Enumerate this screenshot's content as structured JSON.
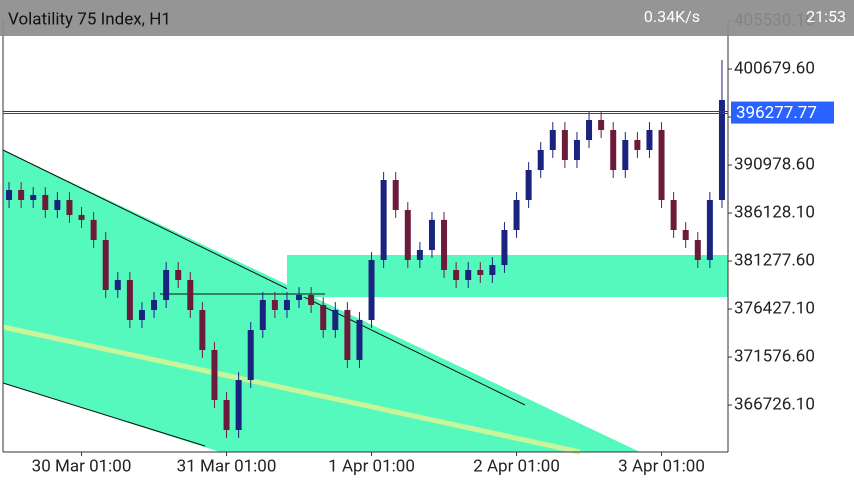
{
  "status_bar": {
    "speed": "0.34K/s",
    "time": "21:53"
  },
  "chart_data": {
    "type": "candlestick",
    "title": "Volatility 75 Index, H1",
    "categories": [
      null,
      null,
      null,
      null,
      null,
      null,
      "30 Mar 01:00",
      null,
      null,
      null,
      null,
      null,
      null,
      null,
      null,
      null,
      null,
      null,
      "31 Mar 01:00",
      null,
      null,
      null,
      null,
      null,
      null,
      null,
      null,
      null,
      null,
      null,
      "1 Apr 01:00",
      null,
      null,
      null,
      null,
      null,
      null,
      null,
      null,
      null,
      null,
      null,
      "2 Apr 01:00",
      null,
      null,
      null,
      null,
      null,
      null,
      null,
      null,
      null,
      null,
      null,
      "3 Apr 01:00",
      null,
      null,
      null,
      null,
      null
    ],
    "open": [
      387442,
      388452,
      387442,
      387947,
      386432,
      387442,
      385926,
      385431,
      383400,
      378347,
      379358,
      375316,
      376326,
      377337,
      380368,
      379358,
      376326,
      372285,
      367232,
      364200,
      369253,
      374305,
      377337,
      376326,
      377337,
      377842,
      376832,
      374305,
      376326,
      371274,
      375316,
      381379,
      389463,
      386432,
      381379,
      382390,
      385431,
      380368,
      379358,
      380368,
      379863,
      380873,
      384411,
      387442,
      390474,
      392495,
      394516,
      391484,
      393505,
      395526,
      394516,
      390474,
      393505,
      392495,
      394516,
      387442,
      384411,
      383400,
      381379,
      387442
    ],
    "high": [
      389252,
      389252,
      388747,
      388747,
      388242,
      388242,
      386726,
      386231,
      384200,
      380158,
      380158,
      377126,
      378137,
      381168,
      381168,
      380158,
      377126,
      373085,
      368032,
      370053,
      375105,
      378137,
      378137,
      378137,
      378642,
      378642,
      377632,
      377126,
      377126,
      376116,
      382179,
      390263,
      390263,
      387232,
      383190,
      386231,
      386231,
      381168,
      381168,
      381168,
      381673,
      385211,
      388242,
      391274,
      393295,
      395316,
      395316,
      394305,
      396326,
      396326,
      395316,
      394305,
      394305,
      395316,
      395316,
      388242,
      385211,
      384200,
      388242,
      401589
    ],
    "low": [
      386642,
      386642,
      386642,
      385632,
      385632,
      385126,
      384631,
      382600,
      377547,
      377547,
      374516,
      374516,
      375526,
      376537,
      378558,
      375526,
      371485,
      366432,
      363400,
      363400,
      368453,
      373505,
      375526,
      375526,
      376537,
      376032,
      373505,
      373505,
      370474,
      370474,
      374516,
      380579,
      385632,
      380579,
      380579,
      381590,
      379568,
      378558,
      378558,
      379063,
      379063,
      380073,
      383611,
      386642,
      389674,
      391695,
      390684,
      390684,
      392705,
      393716,
      389674,
      389674,
      391695,
      391695,
      386642,
      383611,
      382600,
      380579,
      380579,
      386642
    ],
    "close": [
      388452,
      387442,
      387947,
      386432,
      387442,
      385926,
      385431,
      383400,
      378347,
      379358,
      375316,
      376326,
      377337,
      380368,
      379358,
      376326,
      372285,
      367232,
      364200,
      369253,
      374305,
      377337,
      376326,
      377337,
      377842,
      376832,
      374305,
      376326,
      371274,
      375316,
      381379,
      389463,
      386432,
      381379,
      382390,
      385431,
      380368,
      379358,
      380368,
      379863,
      380873,
      384411,
      387442,
      390474,
      392495,
      394516,
      391484,
      393505,
      395526,
      394516,
      390474,
      393505,
      392495,
      394516,
      387442,
      384411,
      383400,
      381379,
      387442,
      397547
    ],
    "up_color": "#1a237e",
    "down_color": "#6d1b3b",
    "current_price": 396277.77,
    "ylim": [
      361977,
      405530.1
    ],
    "yticks": [
      {
        "value": 366726.1,
        "label": "366726.10"
      },
      {
        "value": 371576.6,
        "label": "371576.60"
      },
      {
        "value": 376427.1,
        "label": "376427.10"
      },
      {
        "value": 381277.6,
        "label": "381277.60"
      },
      {
        "value": 386128.1,
        "label": "386128.10"
      },
      {
        "value": 390978.6,
        "label": "390978.60"
      },
      {
        "value": 395829.1,
        "label": "395829.10"
      },
      {
        "value": 400679.6,
        "label": "400679.60"
      },
      {
        "value": 405530.1,
        "label": "405530.10"
      }
    ]
  }
}
